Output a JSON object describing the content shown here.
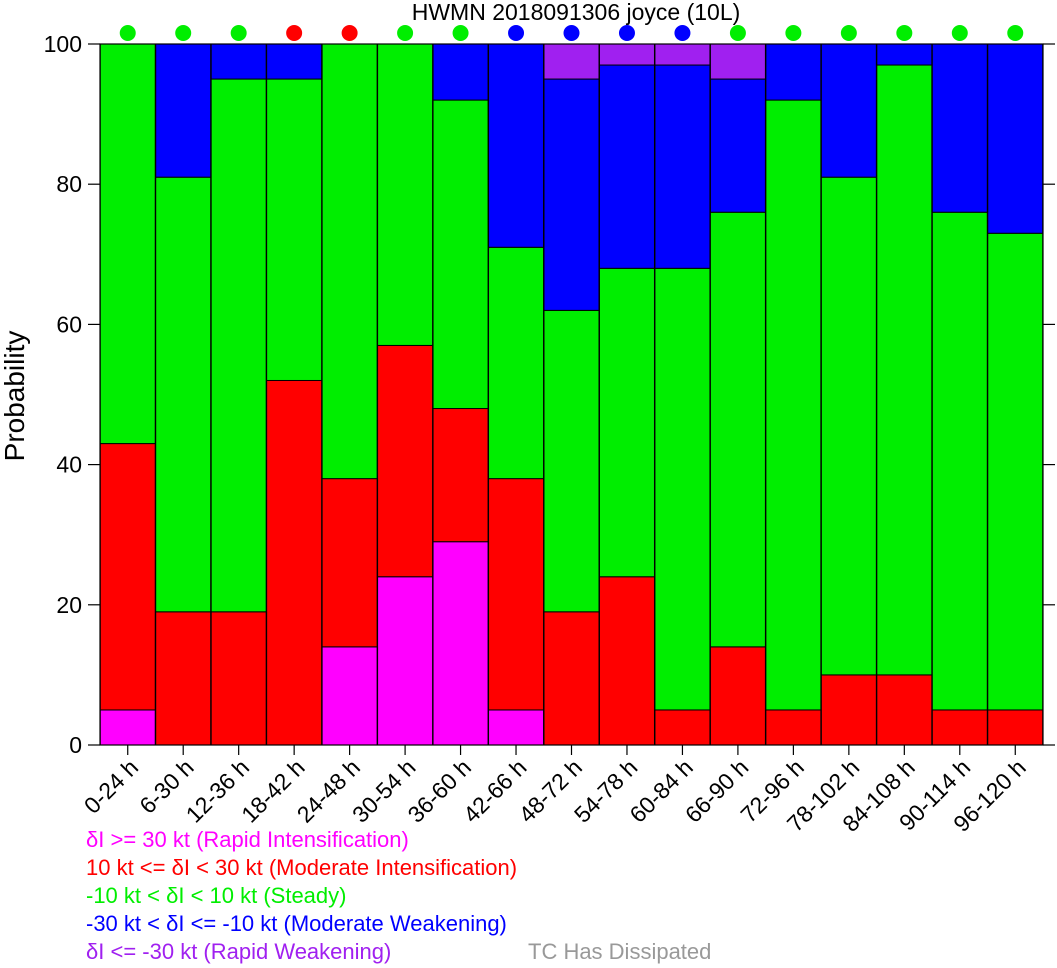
{
  "chart_data": {
    "type": "bar",
    "stacked": true,
    "title": "HWMN 2018091306 joyce (10L)",
    "ylabel": "Probability",
    "xlabel": "",
    "ylim": [
      0,
      100
    ],
    "yticks": [
      0,
      20,
      40,
      60,
      80,
      100
    ],
    "categories": [
      "0-24 h",
      "6-30 h",
      "12-36 h",
      "18-42 h",
      "24-48 h",
      "30-54 h",
      "36-60 h",
      "42-66 h",
      "48-72 h",
      "54-78 h",
      "60-84 h",
      "66-90 h",
      "72-96 h",
      "78-102 h",
      "84-108 h",
      "90-114 h",
      "96-120 h"
    ],
    "series": [
      {
        "key": "ri",
        "color": "#ff00ff",
        "values": [
          5,
          0,
          0,
          0,
          14,
          24,
          29,
          5,
          0,
          0,
          0,
          0,
          0,
          0,
          0,
          0,
          0
        ]
      },
      {
        "key": "mi",
        "color": "#ff0000",
        "values": [
          38,
          19,
          19,
          52,
          24,
          33,
          19,
          33,
          19,
          24,
          5,
          14,
          5,
          10,
          10,
          5,
          5
        ]
      },
      {
        "key": "st",
        "color": "#00ee00",
        "values": [
          57,
          62,
          76,
          43,
          62,
          43,
          44,
          33,
          43,
          44,
          63,
          62,
          87,
          71,
          87,
          71,
          68
        ]
      },
      {
        "key": "mw",
        "color": "#0000ff",
        "values": [
          0,
          19,
          5,
          5,
          0,
          0,
          8,
          29,
          33,
          29,
          29,
          19,
          8,
          19,
          3,
          24,
          27
        ]
      },
      {
        "key": "rw",
        "color": "#a020f0",
        "values": [
          0,
          0,
          0,
          0,
          0,
          0,
          0,
          0,
          5,
          3,
          3,
          5,
          0,
          0,
          0,
          0,
          0
        ]
      }
    ],
    "top_markers": [
      "#00ee00",
      "#00ee00",
      "#00ee00",
      "#ff0000",
      "#ff0000",
      "#00ee00",
      "#00ee00",
      "#0000ff",
      "#0000ff",
      "#0000ff",
      "#0000ff",
      "#00ee00",
      "#00ee00",
      "#00ee00",
      "#00ee00",
      "#00ee00",
      "#00ee00"
    ],
    "legend": {
      "placement": "bottom-left",
      "entries": [
        {
          "label": "δI >= 30 kt (Rapid Intensification)",
          "color": "#ff00ff"
        },
        {
          "label": "10 kt <= δI < 30 kt (Moderate Intensification)",
          "color": "#ff0000"
        },
        {
          "label": "-10 kt < δI < 10 kt (Steady)",
          "color": "#00ee00"
        },
        {
          "label": "-30 kt < δI <= -10 kt (Moderate Weakening)",
          "color": "#0000ff"
        },
        {
          "label": "δI <= -30 kt (Rapid Weakening)",
          "color": "#a020f0"
        }
      ],
      "dissipated": {
        "label": "TC Has Dissipated",
        "color": "#999999"
      }
    }
  }
}
